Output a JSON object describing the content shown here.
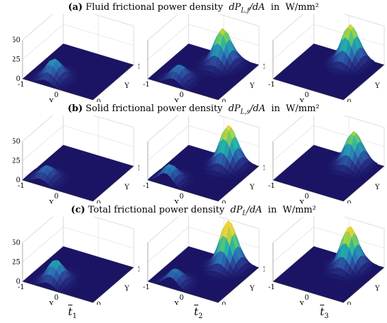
{
  "rows": [
    {
      "letter": "(a)",
      "text": "Fluid frictional power density",
      "sym": "dP",
      "sub": "L,f",
      "den": "/dA",
      "in": "in",
      "unit": "W/mm²"
    },
    {
      "letter": "(b)",
      "text": "Solid frictional power density",
      "sym": "dP",
      "sub": "L,s",
      "den": "/dA",
      "in": "in",
      "unit": "W/mm²"
    },
    {
      "letter": "(c)",
      "text": "Total frictional power density",
      "sym": "dP",
      "sub": "L",
      "den": "/dA",
      "in": "in",
      "unit": "W/mm²"
    }
  ],
  "columns": [
    {
      "t": "t",
      "sub": "1"
    },
    {
      "t": "t",
      "sub": "2"
    },
    {
      "t": "t",
      "sub": "3"
    }
  ],
  "axes": {
    "x_label": "X",
    "y_label": "Y",
    "z_ticks": [
      "50",
      "25",
      "0"
    ],
    "x_ticks": [
      "-1",
      "0",
      "1"
    ],
    "y_ticks": [
      "0",
      "1"
    ]
  },
  "chart_data": {
    "type": "surface3d",
    "zlim": [
      0,
      50
    ],
    "xlim": [
      -1,
      1
    ],
    "ylim": [
      0,
      1
    ],
    "colormap": [
      "#1b1464",
      "#2b3a8f",
      "#2a7ab8",
      "#21b5a8",
      "#8fd24a",
      "#f2d13a"
    ],
    "panels": [
      {
        "row": "a",
        "col": 1,
        "peaks": [
          {
            "x": -0.35,
            "y": 0.2,
            "z": 25
          }
        ]
      },
      {
        "row": "a",
        "col": 2,
        "peaks": [
          {
            "x": -0.3,
            "y": 0.15,
            "z": 20
          },
          {
            "x": 0.2,
            "y": 0.8,
            "z": 45
          }
        ]
      },
      {
        "row": "a",
        "col": 3,
        "peaks": [
          {
            "x": 0.2,
            "y": 0.85,
            "z": 48
          }
        ]
      },
      {
        "row": "b",
        "col": 1,
        "peaks": [
          {
            "x": -0.5,
            "y": 0.15,
            "z": 18
          }
        ]
      },
      {
        "row": "b",
        "col": 2,
        "peaks": [
          {
            "x": -0.5,
            "y": 0.1,
            "z": 22
          },
          {
            "x": 0.3,
            "y": 0.85,
            "z": 50
          }
        ]
      },
      {
        "row": "b",
        "col": 3,
        "peaks": [
          {
            "x": 0.3,
            "y": 0.85,
            "z": 42
          }
        ]
      },
      {
        "row": "c",
        "col": 1,
        "peaks": [
          {
            "x": -0.3,
            "y": 0.2,
            "z": 28
          }
        ]
      },
      {
        "row": "c",
        "col": 2,
        "peaks": [
          {
            "x": -0.35,
            "y": 0.1,
            "z": 20
          },
          {
            "x": 0.3,
            "y": 0.85,
            "z": 58
          }
        ]
      },
      {
        "row": "c",
        "col": 3,
        "peaks": [
          {
            "x": 0.25,
            "y": 0.8,
            "z": 52
          }
        ]
      }
    ]
  }
}
